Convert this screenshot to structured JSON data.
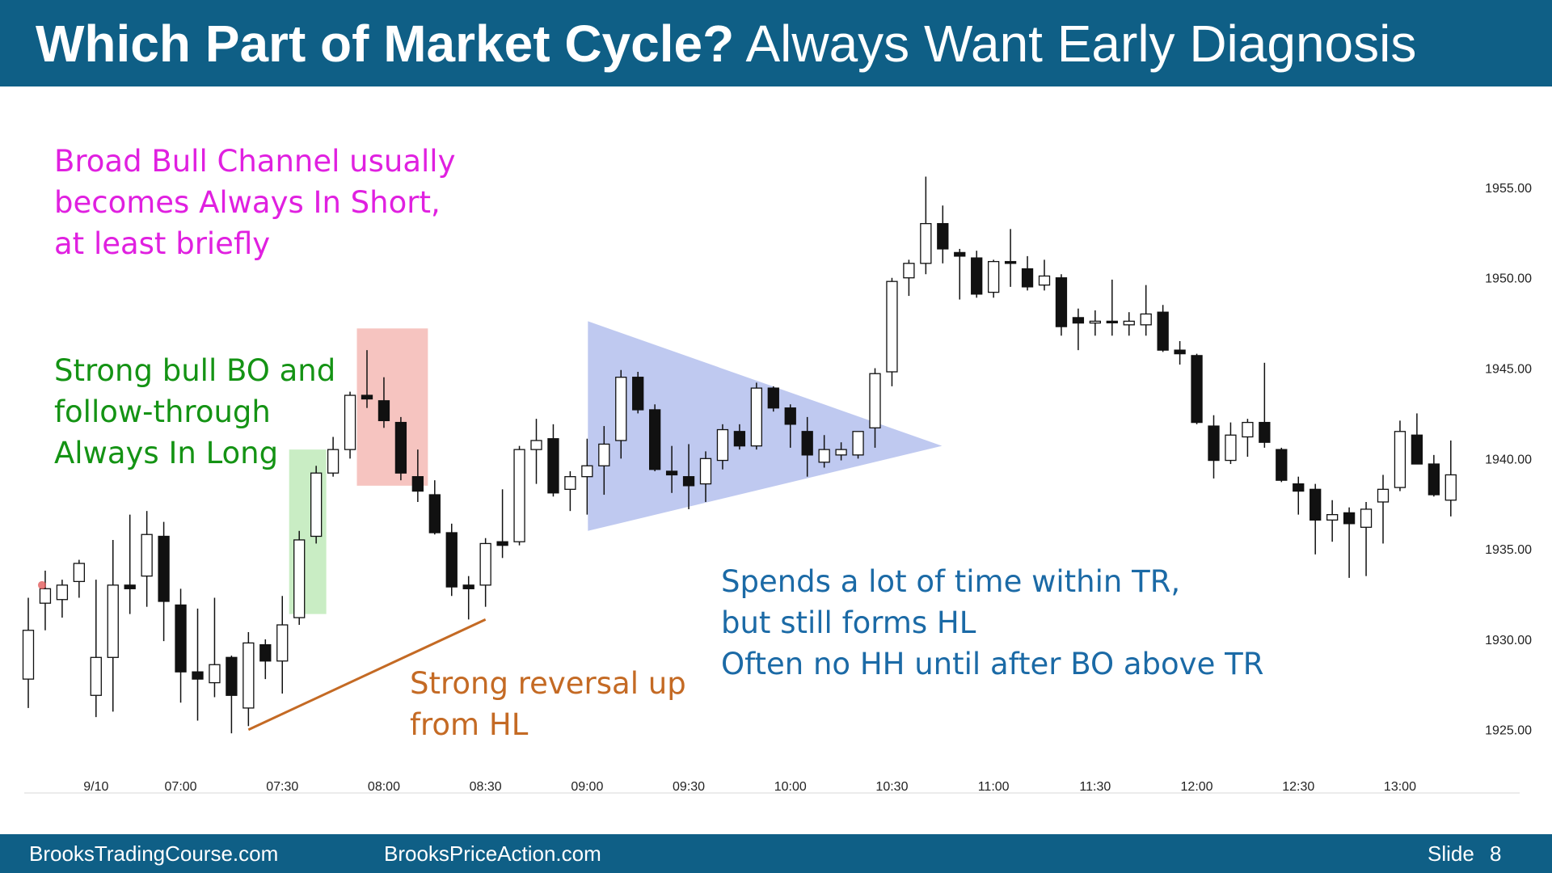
{
  "header": {
    "title_bold": "Which Part of Market Cycle?",
    "title_rest": "Always Want Early Diagnosis"
  },
  "footer": {
    "left": "BrooksTradingCourse.com",
    "center": "BrooksPriceAction.com",
    "slide_label": "Slide",
    "slide_number": "8"
  },
  "annotations": {
    "magenta": [
      "Broad Bull Channel usually",
      "becomes Always In Short,",
      "at least briefly"
    ],
    "green": [
      "Strong bull BO and",
      "follow-through",
      "Always In Long"
    ],
    "orange": [
      "Strong reversal up",
      "from HL"
    ],
    "blue": [
      "Spends a lot of time within TR,",
      "but still forms HL",
      "Often no HH until after BO above TR"
    ]
  },
  "colors": {
    "header_bg": "#0f5f86",
    "magenta_text": "#e020e0",
    "green_text": "#149314",
    "orange_text": "#c46a24",
    "blue_text": "#1b6aa6",
    "green_box": "#c9edc4",
    "red_box": "#f6c4c0",
    "triangle": "#bcc6ef",
    "trendline": "#c46a24"
  },
  "chart_data": {
    "type": "candlestick",
    "bar_minutes": 5,
    "ylim": [
      1921.5,
      1957.5
    ],
    "yticks": [
      "1925.00",
      "1930.00",
      "1935.00",
      "1940.00",
      "1945.00",
      "1950.00",
      "1955.00"
    ],
    "ytick_values": [
      1925,
      1930,
      1935,
      1940,
      1945,
      1950,
      1955
    ],
    "xtick_labels": [
      "9/10",
      "07:00",
      "07:30",
      "08:00",
      "08:30",
      "09:00",
      "09:30",
      "10:00",
      "10:30",
      "11:00",
      "11:30",
      "12:00",
      "12:30",
      "13:00"
    ],
    "xtick_bar_index": [
      4,
      9,
      15,
      21,
      27,
      33,
      39,
      45,
      51,
      57,
      63,
      69,
      75,
      81
    ],
    "bars": [
      {
        "o": 1927.8,
        "h": 1932.3,
        "l": 1926.2,
        "c": 1930.5
      },
      {
        "o": 1932.0,
        "h": 1933.8,
        "l": 1930.5,
        "c": 1932.8
      },
      {
        "o": 1932.2,
        "h": 1933.3,
        "l": 1931.2,
        "c": 1933.0
      },
      {
        "o": 1933.2,
        "h": 1934.4,
        "l": 1932.3,
        "c": 1934.2
      },
      {
        "o": 1926.9,
        "h": 1933.3,
        "l": 1925.7,
        "c": 1929.0
      },
      {
        "o": 1929.0,
        "h": 1935.5,
        "l": 1926.0,
        "c": 1933.0
      },
      {
        "o": 1933.0,
        "h": 1936.9,
        "l": 1931.4,
        "c": 1932.8
      },
      {
        "o": 1933.5,
        "h": 1937.1,
        "l": 1931.8,
        "c": 1935.8
      },
      {
        "o": 1935.7,
        "h": 1936.5,
        "l": 1929.9,
        "c": 1932.1
      },
      {
        "o": 1931.9,
        "h": 1932.8,
        "l": 1926.5,
        "c": 1928.2
      },
      {
        "o": 1928.2,
        "h": 1931.7,
        "l": 1925.5,
        "c": 1927.8
      },
      {
        "o": 1927.6,
        "h": 1932.3,
        "l": 1926.8,
        "c": 1928.6
      },
      {
        "o": 1929.0,
        "h": 1929.1,
        "l": 1924.8,
        "c": 1926.9
      },
      {
        "o": 1926.2,
        "h": 1930.4,
        "l": 1925.2,
        "c": 1929.8
      },
      {
        "o": 1929.7,
        "h": 1930.0,
        "l": 1927.8,
        "c": 1928.8
      },
      {
        "o": 1928.8,
        "h": 1932.4,
        "l": 1927.0,
        "c": 1930.8
      },
      {
        "o": 1931.2,
        "h": 1936.0,
        "l": 1930.8,
        "c": 1935.5
      },
      {
        "o": 1935.7,
        "h": 1939.6,
        "l": 1935.3,
        "c": 1939.2
      },
      {
        "o": 1939.2,
        "h": 1941.2,
        "l": 1939.0,
        "c": 1940.5
      },
      {
        "o": 1940.5,
        "h": 1943.7,
        "l": 1940.0,
        "c": 1943.5
      },
      {
        "o": 1943.5,
        "h": 1946.0,
        "l": 1942.8,
        "c": 1943.3
      },
      {
        "o": 1943.2,
        "h": 1944.5,
        "l": 1941.7,
        "c": 1942.1
      },
      {
        "o": 1942.0,
        "h": 1942.3,
        "l": 1938.8,
        "c": 1939.2
      },
      {
        "o": 1939.0,
        "h": 1940.5,
        "l": 1937.6,
        "c": 1938.2
      },
      {
        "o": 1938.0,
        "h": 1938.8,
        "l": 1935.8,
        "c": 1935.9
      },
      {
        "o": 1935.9,
        "h": 1936.4,
        "l": 1932.4,
        "c": 1932.9
      },
      {
        "o": 1933.0,
        "h": 1933.5,
        "l": 1931.1,
        "c": 1932.8
      },
      {
        "o": 1933.0,
        "h": 1935.6,
        "l": 1931.8,
        "c": 1935.3
      },
      {
        "o": 1935.4,
        "h": 1938.3,
        "l": 1934.5,
        "c": 1935.2
      },
      {
        "o": 1935.4,
        "h": 1940.7,
        "l": 1935.2,
        "c": 1940.5
      },
      {
        "o": 1940.5,
        "h": 1942.2,
        "l": 1938.6,
        "c": 1941.0
      },
      {
        "o": 1941.1,
        "h": 1941.9,
        "l": 1937.9,
        "c": 1938.1
      },
      {
        "o": 1938.3,
        "h": 1939.3,
        "l": 1937.1,
        "c": 1939.0
      },
      {
        "o": 1939.0,
        "h": 1941.1,
        "l": 1936.9,
        "c": 1939.6
      },
      {
        "o": 1939.6,
        "h": 1941.8,
        "l": 1938.0,
        "c": 1940.8
      },
      {
        "o": 1941.0,
        "h": 1944.9,
        "l": 1940.0,
        "c": 1944.5
      },
      {
        "o": 1944.5,
        "h": 1944.8,
        "l": 1942.5,
        "c": 1942.7
      },
      {
        "o": 1942.7,
        "h": 1943.0,
        "l": 1939.3,
        "c": 1939.4
      },
      {
        "o": 1939.3,
        "h": 1940.7,
        "l": 1938.1,
        "c": 1939.1
      },
      {
        "o": 1939.0,
        "h": 1940.8,
        "l": 1937.2,
        "c": 1938.5
      },
      {
        "o": 1938.6,
        "h": 1940.4,
        "l": 1937.6,
        "c": 1940.0
      },
      {
        "o": 1939.9,
        "h": 1941.9,
        "l": 1939.4,
        "c": 1941.6
      },
      {
        "o": 1941.5,
        "h": 1941.9,
        "l": 1940.5,
        "c": 1940.7
      },
      {
        "o": 1940.7,
        "h": 1944.2,
        "l": 1940.5,
        "c": 1943.9
      },
      {
        "o": 1943.9,
        "h": 1944.0,
        "l": 1942.6,
        "c": 1942.8
      },
      {
        "o": 1942.8,
        "h": 1943.0,
        "l": 1940.6,
        "c": 1941.9
      },
      {
        "o": 1941.5,
        "h": 1942.3,
        "l": 1939.0,
        "c": 1940.2
      },
      {
        "o": 1939.8,
        "h": 1941.3,
        "l": 1939.5,
        "c": 1940.5
      },
      {
        "o": 1940.2,
        "h": 1940.9,
        "l": 1939.9,
        "c": 1940.5
      },
      {
        "o": 1940.2,
        "h": 1941.5,
        "l": 1940.0,
        "c": 1941.5
      },
      {
        "o": 1941.7,
        "h": 1945.0,
        "l": 1940.6,
        "c": 1944.7
      },
      {
        "o": 1944.8,
        "h": 1950.0,
        "l": 1944.0,
        "c": 1949.8
      },
      {
        "o": 1950.0,
        "h": 1951.0,
        "l": 1949.0,
        "c": 1950.8
      },
      {
        "o": 1950.8,
        "h": 1955.6,
        "l": 1950.2,
        "c": 1953.0
      },
      {
        "o": 1953.0,
        "h": 1954.0,
        "l": 1950.8,
        "c": 1951.6
      },
      {
        "o": 1951.4,
        "h": 1951.6,
        "l": 1948.8,
        "c": 1951.2
      },
      {
        "o": 1951.1,
        "h": 1951.5,
        "l": 1948.9,
        "c": 1949.1
      },
      {
        "o": 1949.2,
        "h": 1951.0,
        "l": 1948.9,
        "c": 1950.9
      },
      {
        "o": 1950.9,
        "h": 1952.7,
        "l": 1949.5,
        "c": 1950.8
      },
      {
        "o": 1950.5,
        "h": 1951.2,
        "l": 1949.3,
        "c": 1949.5
      },
      {
        "o": 1949.6,
        "h": 1951.0,
        "l": 1949.3,
        "c": 1950.1
      },
      {
        "o": 1950.0,
        "h": 1950.2,
        "l": 1946.8,
        "c": 1947.3
      },
      {
        "o": 1947.8,
        "h": 1948.3,
        "l": 1946.0,
        "c": 1947.5
      },
      {
        "o": 1947.5,
        "h": 1948.2,
        "l": 1946.8,
        "c": 1947.6
      },
      {
        "o": 1947.6,
        "h": 1949.9,
        "l": 1946.8,
        "c": 1947.6
      },
      {
        "o": 1947.4,
        "h": 1948.1,
        "l": 1946.8,
        "c": 1947.6
      },
      {
        "o": 1947.4,
        "h": 1949.6,
        "l": 1946.8,
        "c": 1948.0
      },
      {
        "o": 1948.1,
        "h": 1948.5,
        "l": 1945.9,
        "c": 1946.0
      },
      {
        "o": 1946.0,
        "h": 1946.5,
        "l": 1945.2,
        "c": 1945.8
      },
      {
        "o": 1945.7,
        "h": 1945.8,
        "l": 1941.9,
        "c": 1942.0
      },
      {
        "o": 1941.8,
        "h": 1942.4,
        "l": 1938.9,
        "c": 1939.9
      },
      {
        "o": 1939.9,
        "h": 1942.0,
        "l": 1939.7,
        "c": 1941.3
      },
      {
        "o": 1941.2,
        "h": 1942.2,
        "l": 1940.1,
        "c": 1942.0
      },
      {
        "o": 1942.0,
        "h": 1945.3,
        "l": 1940.6,
        "c": 1940.9
      },
      {
        "o": 1940.5,
        "h": 1940.6,
        "l": 1938.7,
        "c": 1938.8
      },
      {
        "o": 1938.6,
        "h": 1939.0,
        "l": 1936.9,
        "c": 1938.2
      },
      {
        "o": 1938.3,
        "h": 1938.6,
        "l": 1934.7,
        "c": 1936.6
      },
      {
        "o": 1936.6,
        "h": 1937.7,
        "l": 1935.4,
        "c": 1936.9
      },
      {
        "o": 1937.0,
        "h": 1937.3,
        "l": 1933.4,
        "c": 1936.4
      },
      {
        "o": 1936.2,
        "h": 1937.6,
        "l": 1933.5,
        "c": 1937.2
      },
      {
        "o": 1937.6,
        "h": 1939.1,
        "l": 1935.3,
        "c": 1938.3
      },
      {
        "o": 1938.4,
        "h": 1942.1,
        "l": 1938.2,
        "c": 1941.5
      },
      {
        "o": 1941.3,
        "h": 1942.5,
        "l": 1939.8,
        "c": 1939.7
      },
      {
        "o": 1939.7,
        "h": 1940.2,
        "l": 1937.9,
        "c": 1938.0
      },
      {
        "o": 1937.7,
        "h": 1941.0,
        "l": 1936.8,
        "c": 1939.1
      }
    ],
    "zones": [
      {
        "kind": "green-box",
        "from_bar": 16,
        "to_bar": 17,
        "y_low": 1931.4,
        "y_high": 1940.5
      },
      {
        "kind": "red-box",
        "from_bar": 20,
        "to_bar": 23,
        "y_low": 1938.5,
        "y_high": 1947.2
      },
      {
        "kind": "triangle",
        "points": [
          [
            34,
            1947.6
          ],
          [
            34,
            1936.0
          ],
          [
            53,
            1940.7
          ]
        ]
      },
      {
        "kind": "trendline",
        "points": [
          [
            13,
            1925.0
          ],
          [
            27,
            1931.1
          ]
        ]
      }
    ]
  }
}
